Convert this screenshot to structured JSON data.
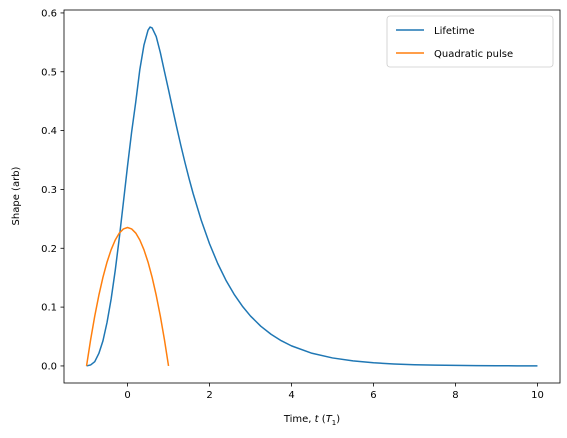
{
  "chart_data": {
    "type": "line",
    "xlabel_prefix": "Time, ",
    "xlabel_var": "t",
    "xlabel_unit_open": " (",
    "xlabel_unit_var": "T",
    "xlabel_unit_sub": "1",
    "xlabel_unit_close": ")",
    "ylabel": "Shape (arb)",
    "xlim": [
      -1.55,
      10.55
    ],
    "ylim": [
      -0.029,
      0.605
    ],
    "xticks": [
      0,
      2,
      4,
      6,
      8,
      10
    ],
    "yticks": [
      0.0,
      0.1,
      0.2,
      0.3,
      0.4,
      0.5,
      0.6
    ],
    "xtick_labels": [
      "0",
      "2",
      "4",
      "6",
      "8",
      "10"
    ],
    "ytick_labels": [
      "0.0",
      "0.1",
      "0.2",
      "0.3",
      "0.4",
      "0.5",
      "0.6"
    ],
    "grid": false,
    "legend_position": "top-right",
    "series": [
      {
        "name": "Lifetime",
        "color": "#1f77b4",
        "x": [
          -1.0,
          -0.9,
          -0.8,
          -0.7,
          -0.6,
          -0.5,
          -0.4,
          -0.3,
          -0.2,
          -0.1,
          0.0,
          0.1,
          0.2,
          0.3,
          0.4,
          0.5,
          0.55,
          0.6,
          0.7,
          0.8,
          0.9,
          1.0,
          1.1,
          1.2,
          1.3,
          1.4,
          1.5,
          1.6,
          1.8,
          2.0,
          2.2,
          2.4,
          2.6,
          2.8,
          3.0,
          3.25,
          3.5,
          3.75,
          4.0,
          4.5,
          5.0,
          5.5,
          6.0,
          6.5,
          7.0,
          7.5,
          8.0,
          8.5,
          9.0,
          9.5,
          10.0
        ],
        "y": [
          0.0,
          0.0017,
          0.0072,
          0.0212,
          0.0426,
          0.074,
          0.1138,
          0.1624,
          0.2182,
          0.2787,
          0.3399,
          0.3977,
          0.4485,
          0.5039,
          0.5451,
          0.5707,
          0.576,
          0.5745,
          0.5598,
          0.5327,
          0.5007,
          0.4694,
          0.4371,
          0.4054,
          0.3749,
          0.346,
          0.3187,
          0.2931,
          0.2471,
          0.2077,
          0.1741,
          0.1457,
          0.1218,
          0.1017,
          0.0848,
          0.0676,
          0.0539,
          0.0429,
          0.0341,
          0.0215,
          0.0136,
          0.0086,
          0.0054,
          0.0034,
          0.0021,
          0.0014,
          0.0009,
          0.0005,
          0.0003,
          0.0002,
          0.0001
        ]
      },
      {
        "name": "Quadratic pulse",
        "color": "#ff7f0e",
        "x": [
          -1.0,
          -0.9,
          -0.8,
          -0.7,
          -0.6,
          -0.5,
          -0.4,
          -0.3,
          -0.2,
          -0.1,
          0.0,
          0.1,
          0.2,
          0.3,
          0.4,
          0.5,
          0.6,
          0.7,
          0.8,
          0.9,
          1.0
        ],
        "y": [
          0.0,
          0.0447,
          0.0847,
          0.12,
          0.1506,
          0.1765,
          0.1976,
          0.2141,
          0.2259,
          0.2329,
          0.2353,
          0.2329,
          0.2259,
          0.2141,
          0.1976,
          0.1765,
          0.1506,
          0.12,
          0.0847,
          0.0447,
          0.0
        ]
      }
    ]
  }
}
